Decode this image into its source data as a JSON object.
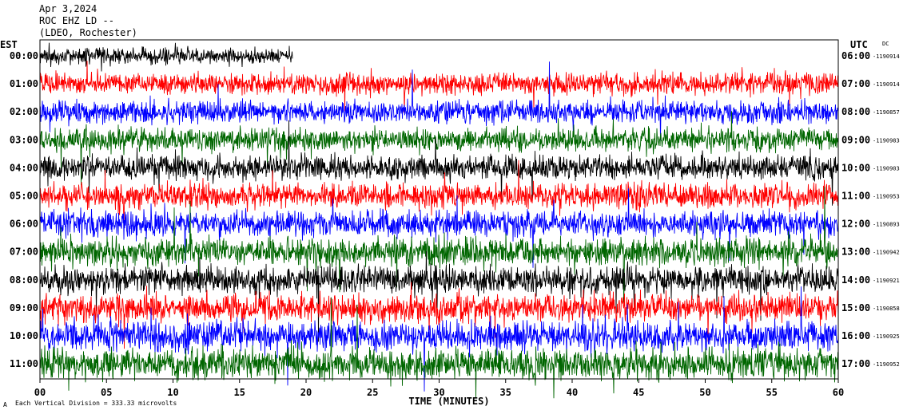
{
  "header": {
    "date": "Apr 3,2024",
    "station": "ROC EHZ LD --",
    "network": "(LDEO, Rochester)"
  },
  "axes": {
    "left_label": "EST",
    "right_label": "UTC",
    "right_sub_label": "DC",
    "x_title": "TIME (MINUTES)",
    "footer": "Each Vertical Division =  333.33 microvolts",
    "footer_mark": "A"
  },
  "colors": {
    "trace_cycle": [
      "#000000",
      "#ff0000",
      "#0000ff",
      "#006600"
    ],
    "frame": "#000000",
    "background": "#ffffff"
  },
  "chart_data": {
    "type": "line",
    "title": "",
    "xlabel": "TIME (MINUTES)",
    "ylabel": "",
    "xlim": [
      0,
      60
    ],
    "x_ticks": [
      "00",
      "05",
      "10",
      "15",
      "20",
      "25",
      "30",
      "35",
      "40",
      "45",
      "50",
      "55",
      "60"
    ],
    "rows": [
      {
        "est": "00:00",
        "utc": "06:00",
        "dc": "-1190914",
        "color": "#000000",
        "end_minute": 19
      },
      {
        "est": "01:00",
        "utc": "07:00",
        "dc": "-1190914",
        "color": "#ff0000",
        "end_minute": 60
      },
      {
        "est": "02:00",
        "utc": "08:00",
        "dc": "-1190857",
        "color": "#0000ff",
        "end_minute": 60
      },
      {
        "est": "03:00",
        "utc": "09:00",
        "dc": "-1190983",
        "color": "#006600",
        "end_minute": 60
      },
      {
        "est": "04:00",
        "utc": "10:00",
        "dc": "-1190903",
        "color": "#000000",
        "end_minute": 60
      },
      {
        "est": "05:00",
        "utc": "11:00",
        "dc": "-1190953",
        "color": "#ff0000",
        "end_minute": 60
      },
      {
        "est": "06:00",
        "utc": "12:00",
        "dc": "-1190893",
        "color": "#0000ff",
        "end_minute": 60
      },
      {
        "est": "07:00",
        "utc": "13:00",
        "dc": "-1190942",
        "color": "#006600",
        "end_minute": 60
      },
      {
        "est": "08:00",
        "utc": "14:00",
        "dc": "-1190921",
        "color": "#000000",
        "end_minute": 60
      },
      {
        "est": "09:00",
        "utc": "15:00",
        "dc": "-1190858",
        "color": "#ff0000",
        "end_minute": 60
      },
      {
        "est": "10:00",
        "utc": "16:00",
        "dc": "-1190925",
        "color": "#0000ff",
        "end_minute": 60
      },
      {
        "est": "11:00",
        "utc": "17:00",
        "dc": "-1190952",
        "color": "#006600",
        "end_minute": 60
      }
    ],
    "scale": "Each Vertical Division =  333.33 microvolts"
  }
}
